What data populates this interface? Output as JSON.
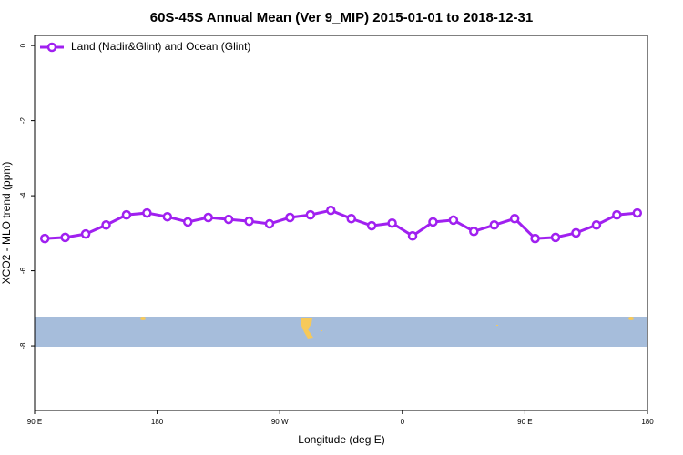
{
  "chart_data": {
    "type": "line",
    "title": "60S-45S Annual Mean (Ver 9_MIP)   2015-01-01 to 2018-12-31",
    "x_label": "Longitude (deg E)",
    "y_label": "XCO2 - MLO trend (ppm)",
    "x": [
      97.5,
      112.5,
      127.5,
      142.5,
      157.5,
      172.5,
      187.5,
      202.5,
      217.5,
      232.5,
      247.5,
      262.5,
      277.5,
      292.5,
      307.5,
      322.5,
      337.5,
      352.5,
      367.5,
      382.5,
      397.5,
      412.5,
      427.5,
      442.5,
      457.5,
      472.5,
      487.5,
      502.5,
      517.5,
      532.5
    ],
    "series": [
      {
        "name": "Land (Nadir&Glint) and Ocean (Glint)",
        "color": "#a020f0",
        "values": [
          -5.14,
          -5.11,
          -5.02,
          -4.78,
          -4.51,
          -4.46,
          -4.56,
          -4.7,
          -4.58,
          -4.63,
          -4.68,
          -4.75,
          -4.58,
          -4.51,
          -4.39,
          -4.61,
          -4.8,
          -4.73,
          -5.07,
          -4.7,
          -4.65,
          -4.95,
          -4.78,
          -4.61,
          -5.14,
          -5.11,
          -4.99,
          -4.78,
          -4.51,
          -4.46
        ]
      }
    ],
    "xlim": [
      90,
      540
    ],
    "xticks": [
      {
        "value": 90,
        "label": "90 E"
      },
      {
        "value": 180,
        "label": "180"
      },
      {
        "value": 270,
        "label": "90 W"
      },
      {
        "value": 360,
        "label": "0"
      },
      {
        "value": 450,
        "label": "90 E"
      },
      {
        "value": 540,
        "label": "180"
      }
    ],
    "ylim": [
      -9.72,
      0.27
    ],
    "yticks": [
      0,
      -2,
      -4,
      -6,
      -8
    ],
    "legend": "top-left"
  }
}
